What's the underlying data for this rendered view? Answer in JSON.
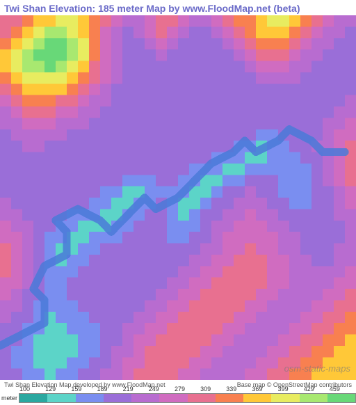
{
  "title": "Twi Shan Elevation: 185 meter Map by www.FloodMap.net (beta)",
  "watermark": "osm-static-maps",
  "footer": {
    "left": "Twi Shan Elevation Map developed by www.FloodMap.net",
    "right": "Base map © OpenStreetMap contributors"
  },
  "legend": {
    "unit_label": "meter",
    "ticks": [
      "100",
      "129",
      "159",
      "189",
      "219",
      "249",
      "279",
      "309",
      "339",
      "369",
      "399",
      "429",
      "459"
    ],
    "colors": [
      "#2aa8a0",
      "#5cd4c8",
      "#7a8ef0",
      "#9a6ed8",
      "#b86cd0",
      "#d06cc0",
      "#e87090",
      "#f88050",
      "#ffc838",
      "#e8ec60",
      "#a8e870",
      "#68d878"
    ]
  },
  "map": {
    "type": "elevation-heatmap",
    "grid_size": 32,
    "palette": {
      "0": "#2aa8a0",
      "1": "#5cd4c8",
      "2": "#7a8ef0",
      "3": "#9a6ed8",
      "4": "#b86cd0",
      "5": "#d06cc0",
      "6": "#e87090",
      "7": "#f88050",
      "8": "#ffc838",
      "9": "#e8ec60",
      "10": "#a8e870",
      "11": "#68d878"
    },
    "cells": [
      [
        6,
        6,
        7,
        8,
        8,
        9,
        9,
        8,
        7,
        6,
        5,
        4,
        4,
        5,
        6,
        6,
        5,
        4,
        4,
        5,
        6,
        7,
        7,
        8,
        9,
        9,
        8,
        7,
        6,
        5,
        4,
        4
      ],
      [
        6,
        7,
        8,
        9,
        10,
        10,
        9,
        8,
        7,
        5,
        4,
        3,
        4,
        5,
        6,
        5,
        4,
        3,
        3,
        4,
        5,
        6,
        7,
        8,
        8,
        8,
        7,
        6,
        5,
        4,
        4,
        3
      ],
      [
        7,
        8,
        9,
        10,
        11,
        11,
        10,
        9,
        7,
        5,
        4,
        3,
        3,
        4,
        5,
        4,
        3,
        3,
        3,
        3,
        4,
        5,
        6,
        7,
        7,
        7,
        6,
        5,
        4,
        4,
        3,
        3
      ],
      [
        8,
        9,
        10,
        11,
        11,
        11,
        10,
        9,
        7,
        5,
        4,
        3,
        3,
        3,
        4,
        3,
        3,
        3,
        3,
        3,
        3,
        4,
        5,
        6,
        6,
        6,
        5,
        4,
        4,
        3,
        3,
        3
      ],
      [
        8,
        9,
        10,
        10,
        11,
        10,
        9,
        8,
        6,
        5,
        4,
        3,
        3,
        3,
        3,
        3,
        3,
        3,
        3,
        3,
        3,
        3,
        4,
        5,
        5,
        5,
        4,
        4,
        3,
        3,
        3,
        3
      ],
      [
        7,
        8,
        9,
        9,
        9,
        9,
        8,
        7,
        6,
        5,
        4,
        3,
        3,
        3,
        3,
        3,
        3,
        3,
        3,
        3,
        3,
        3,
        3,
        4,
        4,
        4,
        4,
        3,
        3,
        3,
        3,
        3
      ],
      [
        6,
        7,
        8,
        8,
        8,
        8,
        7,
        6,
        5,
        4,
        3,
        3,
        3,
        3,
        3,
        3,
        3,
        3,
        3,
        3,
        3,
        3,
        3,
        3,
        3,
        3,
        3,
        3,
        3,
        3,
        3,
        3
      ],
      [
        5,
        6,
        7,
        7,
        7,
        6,
        6,
        5,
        4,
        4,
        3,
        3,
        3,
        3,
        3,
        3,
        3,
        3,
        3,
        3,
        3,
        3,
        3,
        3,
        3,
        3,
        3,
        3,
        3,
        3,
        3,
        4
      ],
      [
        4,
        5,
        6,
        6,
        6,
        5,
        5,
        4,
        4,
        3,
        3,
        3,
        3,
        3,
        3,
        3,
        3,
        3,
        3,
        3,
        3,
        3,
        3,
        3,
        3,
        3,
        3,
        3,
        3,
        3,
        4,
        4
      ],
      [
        4,
        4,
        5,
        5,
        5,
        4,
        4,
        4,
        3,
        3,
        3,
        3,
        3,
        3,
        3,
        3,
        3,
        3,
        3,
        3,
        3,
        3,
        3,
        3,
        3,
        3,
        3,
        3,
        3,
        4,
        4,
        5
      ],
      [
        3,
        4,
        4,
        4,
        4,
        4,
        3,
        3,
        3,
        3,
        3,
        3,
        3,
        3,
        3,
        3,
        3,
        3,
        3,
        3,
        3,
        3,
        3,
        2,
        2,
        3,
        3,
        3,
        3,
        4,
        5,
        5
      ],
      [
        3,
        3,
        4,
        4,
        3,
        3,
        3,
        3,
        3,
        3,
        3,
        3,
        3,
        3,
        3,
        3,
        3,
        3,
        3,
        3,
        3,
        2,
        2,
        1,
        2,
        2,
        3,
        3,
        4,
        4,
        5,
        6
      ],
      [
        3,
        3,
        3,
        3,
        3,
        3,
        3,
        3,
        3,
        3,
        3,
        3,
        3,
        3,
        3,
        3,
        3,
        3,
        3,
        2,
        2,
        2,
        1,
        1,
        2,
        2,
        2,
        3,
        3,
        4,
        5,
        6
      ],
      [
        3,
        3,
        3,
        3,
        3,
        3,
        3,
        3,
        3,
        3,
        3,
        3,
        3,
        3,
        3,
        3,
        3,
        2,
        2,
        2,
        1,
        1,
        2,
        2,
        2,
        2,
        2,
        2,
        3,
        4,
        5,
        6
      ],
      [
        3,
        3,
        3,
        3,
        3,
        3,
        3,
        3,
        3,
        3,
        3,
        2,
        2,
        2,
        3,
        3,
        2,
        2,
        1,
        1,
        2,
        2,
        3,
        3,
        3,
        2,
        2,
        2,
        3,
        4,
        5,
        6
      ],
      [
        3,
        3,
        3,
        3,
        3,
        3,
        3,
        3,
        3,
        2,
        2,
        1,
        1,
        2,
        2,
        2,
        2,
        1,
        1,
        2,
        3,
        3,
        4,
        3,
        3,
        2,
        2,
        2,
        3,
        3,
        4,
        5
      ],
      [
        4,
        3,
        3,
        3,
        3,
        3,
        3,
        3,
        2,
        2,
        1,
        1,
        2,
        2,
        3,
        2,
        1,
        1,
        2,
        3,
        3,
        4,
        4,
        4,
        3,
        3,
        2,
        2,
        3,
        3,
        4,
        5
      ],
      [
        4,
        4,
        3,
        3,
        3,
        3,
        2,
        2,
        2,
        1,
        1,
        2,
        2,
        3,
        3,
        2,
        1,
        2,
        3,
        3,
        4,
        4,
        5,
        4,
        4,
        3,
        3,
        3,
        3,
        3,
        4,
        4
      ],
      [
        5,
        4,
        4,
        3,
        3,
        2,
        2,
        1,
        1,
        1,
        2,
        2,
        3,
        3,
        3,
        2,
        2,
        2,
        3,
        4,
        4,
        5,
        5,
        5,
        4,
        4,
        3,
        3,
        3,
        3,
        3,
        4
      ],
      [
        5,
        5,
        4,
        3,
        2,
        2,
        1,
        1,
        2,
        2,
        2,
        3,
        3,
        3,
        3,
        2,
        2,
        3,
        3,
        4,
        5,
        5,
        5,
        5,
        5,
        4,
        4,
        3,
        3,
        3,
        3,
        4
      ],
      [
        6,
        5,
        4,
        3,
        2,
        1,
        1,
        2,
        2,
        3,
        3,
        3,
        3,
        3,
        3,
        3,
        3,
        3,
        4,
        4,
        5,
        5,
        6,
        5,
        5,
        4,
        4,
        3,
        3,
        3,
        4,
        4
      ],
      [
        6,
        5,
        4,
        3,
        2,
        1,
        2,
        2,
        3,
        3,
        3,
        3,
        3,
        3,
        3,
        3,
        3,
        4,
        4,
        5,
        5,
        6,
        6,
        6,
        5,
        5,
        4,
        4,
        3,
        3,
        4,
        4
      ],
      [
        6,
        5,
        4,
        3,
        2,
        2,
        2,
        3,
        3,
        3,
        3,
        3,
        3,
        3,
        3,
        3,
        4,
        4,
        5,
        5,
        6,
        6,
        6,
        6,
        5,
        5,
        4,
        4,
        4,
        4,
        4,
        5
      ],
      [
        5,
        5,
        4,
        3,
        2,
        2,
        3,
        3,
        3,
        3,
        3,
        3,
        3,
        3,
        3,
        4,
        4,
        5,
        5,
        6,
        6,
        6,
        6,
        6,
        5,
        5,
        4,
        4,
        4,
        4,
        5,
        5
      ],
      [
        5,
        4,
        3,
        3,
        2,
        2,
        3,
        3,
        3,
        3,
        3,
        3,
        3,
        3,
        4,
        4,
        5,
        5,
        6,
        6,
        6,
        6,
        6,
        5,
        5,
        4,
        4,
        4,
        4,
        5,
        5,
        6
      ],
      [
        4,
        4,
        3,
        2,
        2,
        2,
        2,
        3,
        3,
        3,
        3,
        3,
        3,
        4,
        4,
        5,
        5,
        6,
        6,
        6,
        6,
        6,
        5,
        5,
        4,
        4,
        4,
        4,
        5,
        5,
        6,
        6
      ],
      [
        4,
        3,
        3,
        2,
        1,
        2,
        2,
        2,
        3,
        3,
        3,
        3,
        4,
        4,
        5,
        5,
        6,
        6,
        6,
        6,
        6,
        5,
        5,
        4,
        4,
        4,
        4,
        5,
        5,
        6,
        6,
        7
      ],
      [
        3,
        3,
        2,
        2,
        1,
        1,
        2,
        2,
        2,
        3,
        3,
        4,
        4,
        5,
        5,
        6,
        6,
        6,
        6,
        6,
        5,
        5,
        4,
        4,
        4,
        4,
        5,
        5,
        6,
        6,
        7,
        7
      ],
      [
        3,
        3,
        2,
        1,
        1,
        1,
        1,
        2,
        2,
        3,
        3,
        4,
        5,
        5,
        6,
        6,
        6,
        6,
        6,
        5,
        5,
        4,
        4,
        4,
        4,
        5,
        5,
        6,
        6,
        7,
        7,
        8
      ],
      [
        3,
        2,
        2,
        1,
        1,
        1,
        1,
        2,
        2,
        3,
        4,
        4,
        5,
        6,
        6,
        6,
        6,
        6,
        5,
        5,
        4,
        4,
        4,
        4,
        5,
        5,
        6,
        6,
        7,
        7,
        8,
        8
      ],
      [
        3,
        2,
        2,
        1,
        1,
        1,
        2,
        2,
        3,
        3,
        4,
        5,
        5,
        6,
        6,
        6,
        6,
        5,
        5,
        4,
        4,
        4,
        4,
        5,
        5,
        6,
        6,
        7,
        7,
        8,
        8,
        8
      ],
      [
        3,
        3,
        2,
        2,
        1,
        2,
        2,
        3,
        3,
        4,
        4,
        5,
        6,
        6,
        6,
        6,
        5,
        5,
        4,
        4,
        4,
        4,
        5,
        5,
        6,
        6,
        7,
        7,
        8,
        8,
        8,
        8
      ]
    ],
    "river_color": "#4a7ad8",
    "title_color": "#6a6ac8"
  }
}
